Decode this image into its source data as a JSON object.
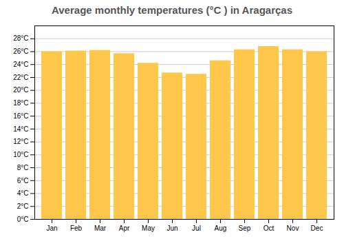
{
  "chart_data": {
    "type": "bar",
    "title": "Average monthly temperatures (°C ) in Aragarças",
    "categories": [
      "Jan",
      "Feb",
      "Mar",
      "Apr",
      "May",
      "Jun",
      "Jul",
      "Aug",
      "Sep",
      "Oct",
      "Nov",
      "Dec"
    ],
    "values": [
      26.0,
      26.1,
      26.2,
      25.7,
      24.2,
      22.7,
      22.5,
      24.6,
      26.3,
      26.8,
      26.3,
      26.0
    ],
    "color": "#FFC84A",
    "ylim": [
      0,
      30
    ],
    "yticks": [
      {
        "value": 0,
        "label": "0°C"
      },
      {
        "value": 2,
        "label": "2°C"
      },
      {
        "value": 4,
        "label": "4°C"
      },
      {
        "value": 6,
        "label": "6°C"
      },
      {
        "value": 8,
        "label": "8°C"
      },
      {
        "value": 10,
        "label": "10°C"
      },
      {
        "value": 12,
        "label": "12°C"
      },
      {
        "value": 14,
        "label": "14°C"
      },
      {
        "value": 16,
        "label": "16°C"
      },
      {
        "value": 18,
        "label": "18°C"
      },
      {
        "value": 20,
        "label": "20°C"
      },
      {
        "value": 22,
        "label": "22°C"
      },
      {
        "value": 24,
        "label": "24°C"
      },
      {
        "value": 26,
        "label": "26°C"
      },
      {
        "value": 28,
        "label": "28°C"
      }
    ],
    "grid": true
  }
}
